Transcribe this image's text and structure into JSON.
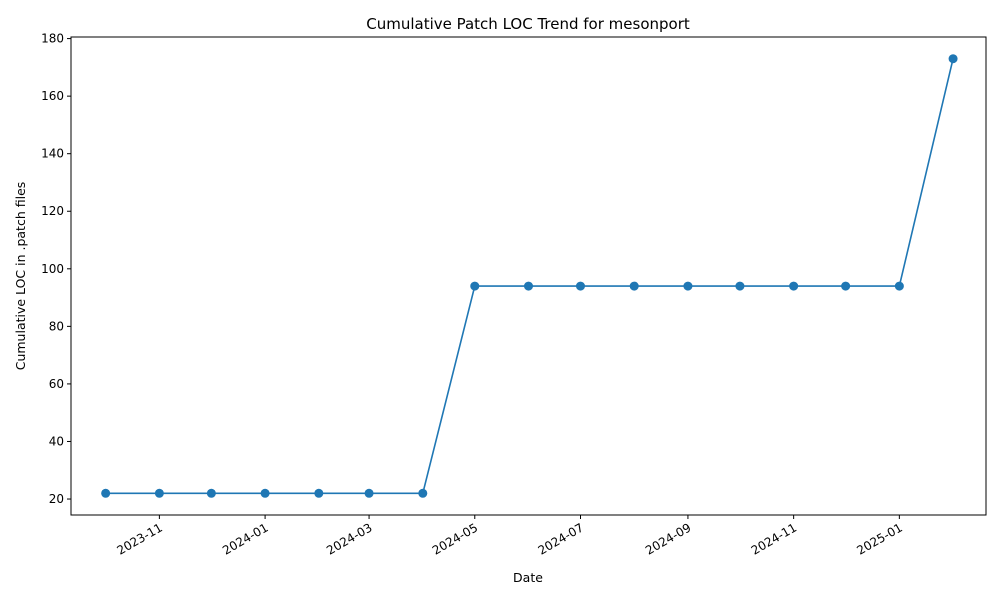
{
  "chart_data": {
    "type": "line",
    "title": "Cumulative Patch LOC Trend for mesonport",
    "xlabel": "Date",
    "ylabel": "Cumulative LOC in .patch files",
    "x": [
      "2023-10-01",
      "2023-11-01",
      "2023-12-01",
      "2024-01-01",
      "2024-02-01",
      "2024-03-01",
      "2024-04-01",
      "2024-05-01",
      "2024-06-01",
      "2024-07-01",
      "2024-08-01",
      "2024-09-01",
      "2024-10-01",
      "2024-11-01",
      "2024-12-01",
      "2025-01-01",
      "2025-02-01"
    ],
    "series": [
      {
        "values": [
          22,
          22,
          22,
          22,
          22,
          22,
          22,
          94,
          94,
          94,
          94,
          94,
          94,
          94,
          94,
          94,
          173
        ],
        "color": "#1f77b4"
      }
    ],
    "xlim": [
      "2023-09-11",
      "2025-02-20"
    ],
    "ylim": [
      14.45,
      180.55
    ],
    "x_ticks": [
      "2023-11",
      "2024-01",
      "2024-03",
      "2024-05",
      "2024-07",
      "2024-09",
      "2024-11",
      "2025-01"
    ],
    "y_ticks": [
      20,
      40,
      60,
      80,
      100,
      120,
      140,
      160,
      180
    ],
    "grid": false,
    "legend": "none",
    "marker": "circle"
  }
}
